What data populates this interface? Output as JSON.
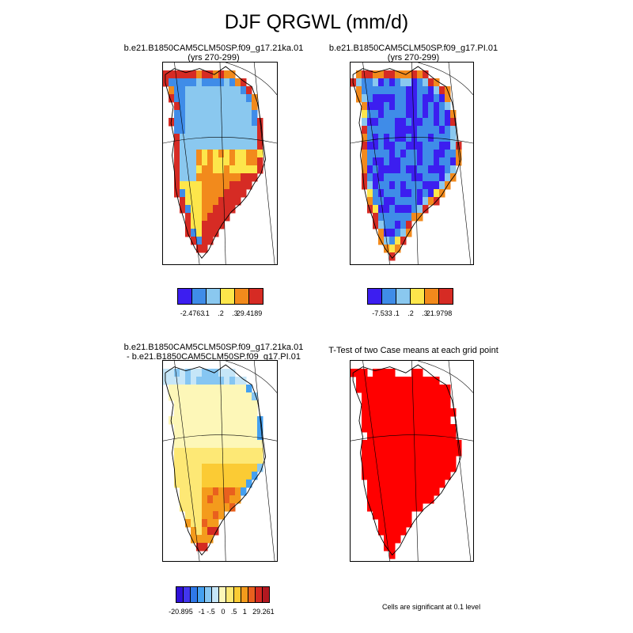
{
  "title": "DJF QRGWL (mm/d)",
  "panels": {
    "tl": {
      "line1": "b.e21.B1850CAM5CLM50SP.f09_g17.21ka.01",
      "line2": "(yrs 270-299)"
    },
    "tr": {
      "line1": "b.e21.B1850CAM5CLM50SP.f09_g17.PI.01",
      "line2": "(yrs 270-299)"
    },
    "bl": {
      "line1": "b.e21.B1850CAM5CLM50SP.f09_g17.21ka.01",
      "line2": "- b.e21.B1850CAM5CLM50SP.f09_g17.PI.01"
    },
    "br": {
      "line1": "T-Test of two Case means at each grid point"
    }
  },
  "legends": {
    "tl": {
      "colors": [
        "#3c1ef0",
        "#3f8ce8",
        "#8ac8ef",
        "#fde64b",
        "#f28a1c",
        "#d62b24"
      ],
      "labels": [
        "-2.4763",
        ".1",
        ".2",
        ".3",
        "29.4189"
      ]
    },
    "tr": {
      "colors": [
        "#3c1ef0",
        "#3f8ce8",
        "#8ac8ef",
        "#fde64b",
        "#f28a1c",
        "#d62b24"
      ],
      "labels": [
        "-7.533",
        ".1",
        ".2",
        ".3",
        "21.9798"
      ]
    },
    "bl": {
      "colors": [
        "#2f10d8",
        "#4236ee",
        "#2f78e8",
        "#44a0f0",
        "#86c6f2",
        "#c6e6f8",
        "#fdf7b8",
        "#fde875",
        "#fbcb34",
        "#f49b1c",
        "#e9601e",
        "#d42a22",
        "#b21820"
      ],
      "labels": [
        "-20.895",
        "-1",
        "-.5",
        "0",
        ".5",
        "1",
        "29.261"
      ]
    }
  },
  "note": "Cells are significant at 0.1 level"
}
